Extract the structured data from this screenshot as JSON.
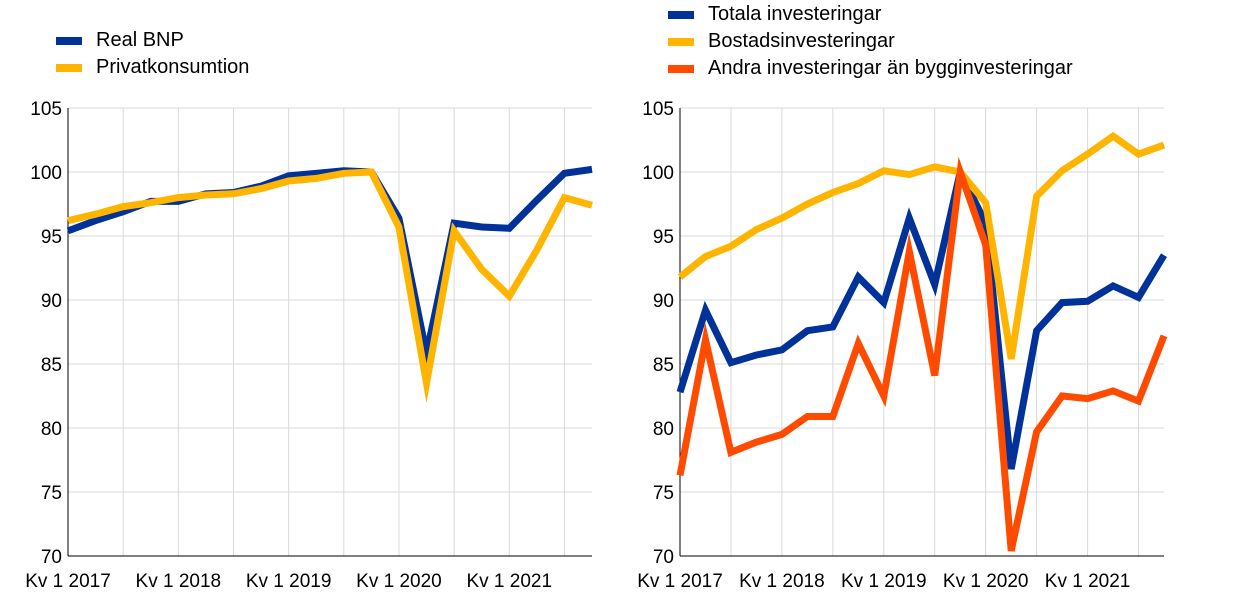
{
  "chart_data": [
    {
      "type": "line",
      "title": "",
      "xlabel": "",
      "ylabel": "",
      "ylim": [
        70,
        105
      ],
      "yticks": [
        70,
        75,
        80,
        85,
        90,
        95,
        100,
        105
      ],
      "x": [
        "Kv 1 2017",
        "Kv 2 2017",
        "Kv 3 2017",
        "Kv 4 2017",
        "Kv 1 2018",
        "Kv 2 2018",
        "Kv 3 2018",
        "Kv 4 2018",
        "Kv 1 2019",
        "Kv 2 2019",
        "Kv 3 2019",
        "Kv 4 2019",
        "Kv 1 2020",
        "Kv 2 2020",
        "Kv 3 2020",
        "Kv 4 2020",
        "Kv 1 2021",
        "Kv 2 2021",
        "Kv 3 2021",
        "Kv 4 2021"
      ],
      "x_tick_labels": [
        "Kv 1 2017",
        "Kv 1 2018",
        "Kv 1 2019",
        "Kv 1 2020",
        "Kv 1 2021"
      ],
      "grid": "vertical-and-horizontal",
      "legend_position": "top-left",
      "series": [
        {
          "name": "Real BNP",
          "color": "#003299",
          "values": [
            95.4,
            96.2,
            96.9,
            97.7,
            97.7,
            98.3,
            98.4,
            98.9,
            99.7,
            99.9,
            100.1,
            100.0,
            96.4,
            85.8,
            96.0,
            95.7,
            95.6,
            97.8,
            99.9,
            100.2
          ]
        },
        {
          "name": "Privatkonsumtion",
          "color": "#FFB400",
          "values": [
            96.2,
            96.7,
            97.3,
            97.6,
            98.0,
            98.2,
            98.3,
            98.7,
            99.3,
            99.5,
            99.9,
            100.0,
            95.7,
            83.5,
            95.4,
            92.4,
            90.3,
            93.9,
            98.0,
            97.4
          ]
        }
      ]
    },
    {
      "type": "line",
      "title": "",
      "xlabel": "",
      "ylabel": "",
      "ylim": [
        70,
        105
      ],
      "yticks": [
        70,
        75,
        80,
        85,
        90,
        95,
        100,
        105
      ],
      "x": [
        "Kv 1 2017",
        "Kv 2 2017",
        "Kv 3 2017",
        "Kv 4 2017",
        "Kv 1 2018",
        "Kv 2 2018",
        "Kv 3 2018",
        "Kv 4 2018",
        "Kv 1 2019",
        "Kv 2 2019",
        "Kv 3 2019",
        "Kv 4 2019",
        "Kv 1 2020",
        "Kv 2 2020",
        "Kv 3 2020",
        "Kv 4 2020",
        "Kv 1 2021",
        "Kv 2 2021",
        "Kv 3 2021",
        "Kv 4 2021"
      ],
      "x_tick_labels": [
        "Kv 1 2017",
        "Kv 1 2018",
        "Kv 1 2019",
        "Kv 1 2020",
        "Kv 1 2021"
      ],
      "grid": "vertical-and-horizontal",
      "legend_position": "top-left",
      "series": [
        {
          "name": "Totala investeringar",
          "color": "#003299",
          "values": [
            82.8,
            89.2,
            85.1,
            85.7,
            86.1,
            87.6,
            87.9,
            91.8,
            89.8,
            96.4,
            91.2,
            100.0,
            96.0,
            76.8,
            87.6,
            89.8,
            89.9,
            91.1,
            90.2,
            93.5
          ]
        },
        {
          "name": "Bostadsinvesteringar",
          "color": "#FFB400",
          "values": [
            91.8,
            93.4,
            94.2,
            95.5,
            96.4,
            97.5,
            98.4,
            99.1,
            100.1,
            99.8,
            100.4,
            100.0,
            97.6,
            85.4,
            98.1,
            100.1,
            101.4,
            102.8,
            101.4,
            102.1
          ]
        },
        {
          "name": "Andra investeringar än bygginvesteringar",
          "color": "#FF4B00",
          "values": [
            76.3,
            86.9,
            78.1,
            78.9,
            79.5,
            80.9,
            80.9,
            86.6,
            82.5,
            93.8,
            84.1,
            100.0,
            94.3,
            70.4,
            79.7,
            82.5,
            82.3,
            82.9,
            82.1,
            87.2
          ]
        }
      ]
    }
  ]
}
